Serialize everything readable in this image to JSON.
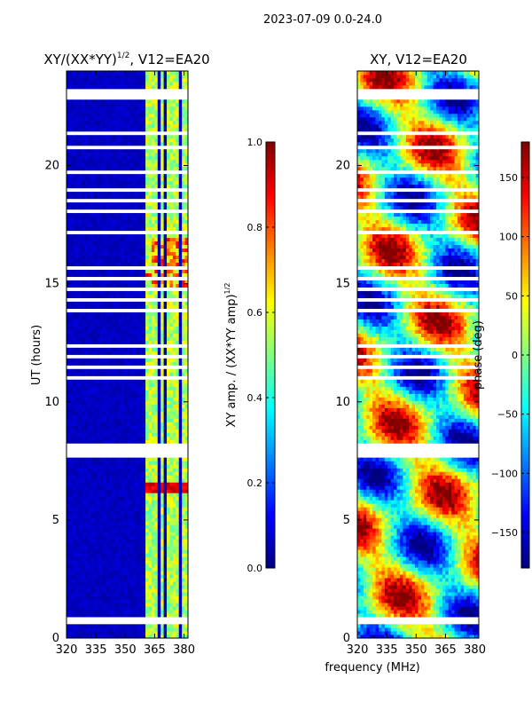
{
  "figure": {
    "suptitle": "2023-07-09 0.0-24.0",
    "xlabel": "frequency (MHz)"
  },
  "chart_data": [
    {
      "type": "heatmap",
      "title": "XY/(XX*YY)",
      "title_exponent": "1/2",
      "title_suffix": ", V12=EA20",
      "xlabel": "",
      "ylabel": "UT (hours)",
      "xlim": [
        320,
        382
      ],
      "ylim": [
        0,
        24
      ],
      "xticks": [
        "320",
        "335",
        "350",
        "365",
        "380"
      ],
      "xtick_values": [
        320,
        335,
        350,
        365,
        380
      ],
      "yticks": [
        "0",
        "5",
        "10",
        "15",
        "20"
      ],
      "ytick_values": [
        0,
        5,
        10,
        15,
        20
      ],
      "colormap": "jet",
      "bright_channel_bands_mhz": [
        [
          360,
          363
        ],
        [
          364,
          367
        ],
        [
          368,
          370
        ],
        [
          371,
          374
        ],
        [
          375,
          378
        ],
        [
          379,
          382
        ]
      ],
      "flare_events_ut": [
        6.4,
        15.3
      ],
      "gaps_ut": [
        [
          7.7,
          8.2
        ],
        [
          23.0,
          23.2
        ],
        [
          21.3,
          21.5
        ],
        [
          0.6,
          0.9
        ]
      ],
      "colorbar": {
        "label": "XY amp. / (XX*YY amp)",
        "label_exponent": "1/2",
        "range": [
          0.0,
          1.0
        ],
        "ticks": [
          "0.0",
          "0.2",
          "0.4",
          "0.6",
          "0.8",
          "1.0"
        ],
        "tick_values": [
          0.0,
          0.2,
          0.4,
          0.6,
          0.8,
          1.0
        ]
      }
    },
    {
      "type": "heatmap",
      "title": "XY, V12=EA20",
      "xlabel": "",
      "ylabel": "",
      "xlim": [
        320,
        382
      ],
      "ylim": [
        0,
        24
      ],
      "xticks": [
        "320",
        "335",
        "350",
        "365",
        "380"
      ],
      "xtick_values": [
        320,
        335,
        350,
        365,
        380
      ],
      "yticks": [
        "0",
        "5",
        "10",
        "15",
        "20"
      ],
      "ytick_values": [
        0,
        5,
        10,
        15,
        20
      ],
      "colormap": "jet",
      "colorbar": {
        "label": "phase (deg)",
        "range": [
          -180,
          180
        ],
        "ticks": [
          "−150",
          "−100",
          "−50",
          "0",
          "50",
          "100",
          "150"
        ],
        "tick_values": [
          -150,
          -100,
          -50,
          0,
          50,
          100,
          150
        ]
      }
    }
  ]
}
